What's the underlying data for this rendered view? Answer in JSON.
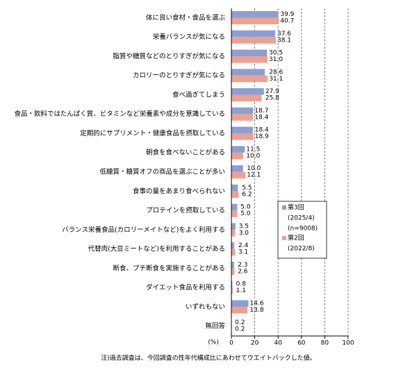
{
  "chart_data": {
    "type": "bar",
    "orientation": "horizontal",
    "categories": [
      "体に良い食材・食品を選ぶ",
      "栄養バランスが気になる",
      "脂質や糖質などのとりすぎが気になる",
      "カロリーのとりすぎが気になる",
      "食べ過ぎてしまう",
      "食品・飲料ではたんぱく質、ビタミンなど栄養素や成分を意識している",
      "定期的にサプリメント・健康食品を摂取している",
      "朝食を食べないことがある",
      "低糖質・糖質オフの商品を選ぶことが多い",
      "食事の量をあまり食べられない",
      "プロテインを摂取している",
      "バランス栄養食品(カロリーメイトなど)をよく利用する",
      "代替肉(大豆ミートなど)を利用することがある",
      "断食、プチ断食を実施することがある",
      "ダイエット食品を利用する",
      "いずれもない",
      "無回答"
    ],
    "series": [
      {
        "name": "第3回",
        "period": "(2025/4)",
        "n": "(n=9008)",
        "color": "#8c9fd0",
        "values": [
          39.9,
          37.6,
          30.5,
          28.6,
          27.9,
          18.7,
          18.4,
          11.5,
          10.0,
          5.5,
          5.0,
          3.5,
          2.4,
          2.3,
          0.8,
          14.6,
          0.2
        ],
        "value_labels": [
          "39.9",
          "37.6",
          "30.5",
          "28.6",
          "27.9",
          "18.7",
          "18.4",
          "11.5",
          "10.0",
          "5.5",
          "5.0",
          "3.5",
          "2.4",
          "2.3",
          "0.8",
          "14.6",
          "0.2"
        ]
      },
      {
        "name": "第2回",
        "period": "(2022/8)",
        "color": "#f0a090",
        "values": [
          40.7,
          38.1,
          31.0,
          31.1,
          25.8,
          18.4,
          18.9,
          10.0,
          12.1,
          6.2,
          5.0,
          3.0,
          3.1,
          2.6,
          1.1,
          13.8,
          0.2
        ],
        "value_labels": [
          "40.7",
          "38.1",
          "31.0",
          "31.1",
          "25.8",
          "18.4",
          "18.9",
          "10.0",
          "12.1",
          "6.2",
          "5.0",
          "3.0",
          "3.1",
          "2.6",
          "1.1",
          "13.8",
          "0.2"
        ]
      }
    ],
    "xlim": [
      0,
      100
    ],
    "xticks": [
      0,
      20,
      40,
      60,
      80,
      100
    ],
    "x_unit": "(%)",
    "grid": true,
    "note": "注)過去調査は、今回調査の性年代構成比にあわせてウエイトバックした値。"
  }
}
